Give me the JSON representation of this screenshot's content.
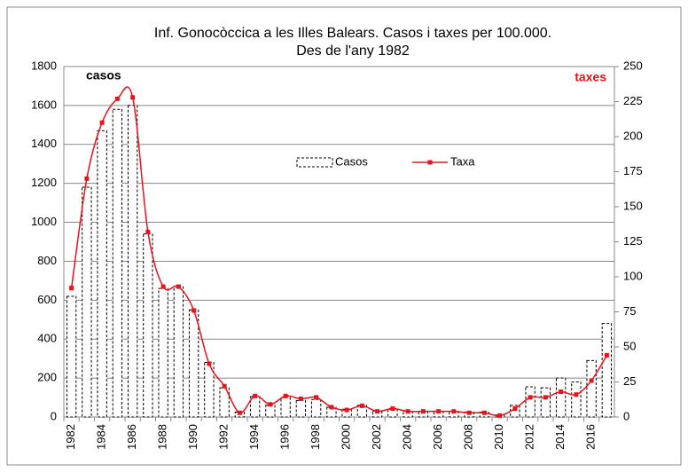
{
  "chart_data": {
    "type": "bar_line",
    "title": "Inf. Gonocòccica a les Illes Balears.   Casos i taxes per 100.000.",
    "subtitle": "Des de l'any 1982",
    "ylabel": "casos",
    "y2label": "taxes",
    "categories": [
      "1982",
      null,
      "1984",
      null,
      "1986",
      null,
      "1988",
      null,
      "1990",
      null,
      "1992",
      null,
      "1994",
      null,
      "1996",
      null,
      "1998",
      null,
      "2000",
      null,
      "2002",
      null,
      "2004",
      null,
      "2006",
      null,
      "2008",
      null,
      "2010",
      null,
      "2012",
      null,
      "2014",
      null,
      "2016",
      null
    ],
    "series": [
      {
        "name": "Casos",
        "kind": "bar",
        "color": "#000000",
        "values": [
          620,
          1180,
          1470,
          1580,
          1600,
          940,
          660,
          670,
          550,
          280,
          150,
          25,
          105,
          60,
          100,
          85,
          90,
          50,
          40,
          60,
          30,
          40,
          30,
          30,
          30,
          30,
          25,
          25,
          10,
          60,
          155,
          150,
          200,
          180,
          290,
          480
        ]
      },
      {
        "name": "Taxa",
        "kind": "line",
        "axis": "y2",
        "color": "#e8131b",
        "values": [
          92,
          170,
          210,
          227,
          228,
          132,
          93,
          93,
          76,
          38,
          22,
          3,
          15,
          9,
          15,
          13,
          14,
          7,
          5,
          8,
          4,
          6,
          4,
          4,
          4,
          4,
          3,
          3,
          1,
          6,
          14,
          14,
          18,
          16,
          26,
          44
        ]
      }
    ],
    "ylim": [
      0,
      1800
    ],
    "yticks": [
      0,
      200,
      400,
      600,
      800,
      1000,
      1200,
      1400,
      1600,
      1800
    ],
    "y2lim": [
      0,
      250
    ],
    "y2ticks": [
      0,
      25,
      50,
      75,
      100,
      125,
      150,
      175,
      200,
      225,
      250
    ],
    "grid": true
  }
}
